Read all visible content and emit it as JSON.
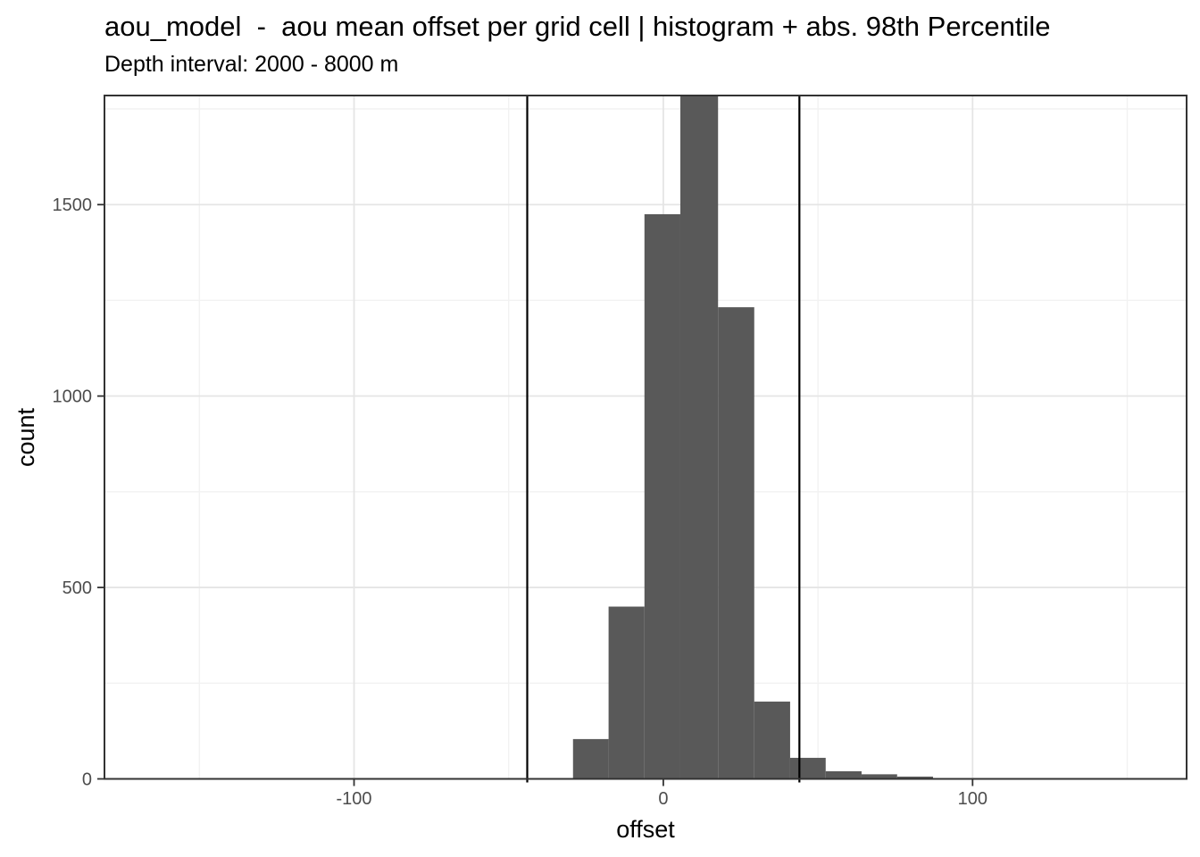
{
  "title": "aou_model  -  aou mean offset per grid cell | histogram + abs. 98th Percentile",
  "subtitle": "Depth interval: 2000 - 8000 m",
  "chart_data": {
    "type": "bar",
    "subtype": "histogram",
    "title": "aou_model  -  aou mean offset per grid cell | histogram + abs. 98th Percentile",
    "subtitle": "Depth interval: 2000 - 8000 m",
    "xlabel": "offset",
    "ylabel": "count",
    "xlim": [
      -180.7,
      169.2
    ],
    "ylim": [
      0,
      1785
    ],
    "x_ticks": [
      -100,
      0,
      100
    ],
    "y_ticks": [
      0,
      500,
      1000,
      1500
    ],
    "x_minor_gridlines": [
      -150,
      -50,
      50,
      150
    ],
    "y_minor_gridlines": [
      250,
      750,
      1250,
      1750
    ],
    "grid": true,
    "legend": false,
    "bins": [
      {
        "x0": -29.2,
        "x1": -17.7,
        "count": 104
      },
      {
        "x0": -17.7,
        "x1": -6.1,
        "count": 450
      },
      {
        "x0": -6.1,
        "x1": 5.5,
        "count": 1475
      },
      {
        "x0": 5.5,
        "x1": 17.7,
        "count": 1800,
        "clipped_at_top": true
      },
      {
        "x0": 17.7,
        "x1": 29.4,
        "count": 1232
      },
      {
        "x0": 29.4,
        "x1": 41.0,
        "count": 202
      },
      {
        "x0": 41.0,
        "x1": 52.5,
        "count": 55
      },
      {
        "x0": 52.5,
        "x1": 64.1,
        "count": 20
      },
      {
        "x0": 64.1,
        "x1": 75.6,
        "count": 12
      },
      {
        "x0": 75.6,
        "x1": 87.2,
        "count": 6
      }
    ],
    "vlines": [
      {
        "x": -44,
        "meaning": "abs. 98th Percentile"
      },
      {
        "x": 44,
        "meaning": "abs. 98th Percentile"
      }
    ],
    "colors": {
      "bar_fill": "#595959",
      "vline": "#000000",
      "grid_major": "#e5e5e5",
      "grid_minor": "#f2f2f2",
      "panel_border": "#333333",
      "panel_background": "#ffffff",
      "tick_mark": "#333333",
      "tick_label": "#4d4d4d",
      "title_text": "#000000",
      "background": "#ffffff"
    }
  }
}
